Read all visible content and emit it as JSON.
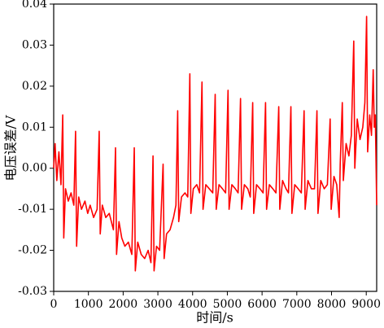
{
  "chart_data": {
    "type": "line",
    "xlabel": "时间/s",
    "ylabel": "电压误差/V",
    "color": "#ff0000",
    "xlim": [
      0,
      9300
    ],
    "ylim": [
      -0.03,
      0.04
    ],
    "xticks": [
      0,
      1000,
      2000,
      3000,
      4000,
      5000,
      6000,
      7000,
      8000,
      9000
    ],
    "yticks": [
      -0.03,
      -0.02,
      -0.01,
      {
        "value": 0,
        "label": "0.00"
      },
      0.01,
      0.02,
      0.03,
      0.04
    ],
    "x": [
      0,
      40,
      90,
      150,
      210,
      260,
      290,
      340,
      420,
      500,
      580,
      630,
      660,
      720,
      800,
      900,
      980,
      1050,
      1150,
      1250,
      1310,
      1340,
      1400,
      1500,
      1600,
      1720,
      1780,
      1810,
      1880,
      1960,
      2050,
      2150,
      2250,
      2320,
      2350,
      2420,
      2520,
      2620,
      2720,
      2800,
      2860,
      2890,
      2960,
      3050,
      3150,
      3180,
      3250,
      3350,
      3450,
      3520,
      3570,
      3600,
      3680,
      3780,
      3860,
      3920,
      3950,
      4020,
      4120,
      4200,
      4270,
      4300,
      4380,
      4480,
      4580,
      4650,
      4680,
      4760,
      4860,
      4950,
      5020,
      5050,
      5130,
      5230,
      5310,
      5380,
      5410,
      5490,
      5590,
      5660,
      5730,
      5760,
      5840,
      5940,
      6030,
      6100,
      6130,
      6210,
      6310,
      6400,
      6480,
      6510,
      6590,
      6690,
      6760,
      6830,
      6860,
      6940,
      7040,
      7130,
      7210,
      7240,
      7320,
      7420,
      7510,
      7580,
      7610,
      7690,
      7790,
      7880,
      7960,
      7990,
      8070,
      8150,
      8220,
      8250,
      8310,
      8340,
      8420,
      8500,
      8570,
      8640,
      8670,
      8740,
      8820,
      8900,
      8960,
      9010,
      9040,
      9100,
      9150,
      9200,
      9230,
      9260,
      9300
    ],
    "values": [
      0.0,
      0.006,
      -0.003,
      0.004,
      -0.004,
      0.013,
      -0.017,
      -0.005,
      -0.008,
      -0.006,
      -0.009,
      0.009,
      -0.019,
      -0.007,
      -0.01,
      -0.008,
      -0.011,
      -0.009,
      -0.012,
      -0.01,
      0.009,
      -0.016,
      -0.009,
      -0.012,
      -0.011,
      -0.015,
      0.005,
      -0.021,
      -0.013,
      -0.017,
      -0.019,
      -0.018,
      -0.021,
      0.005,
      -0.025,
      -0.018,
      -0.021,
      -0.022,
      -0.02,
      -0.023,
      0.003,
      -0.025,
      -0.019,
      -0.02,
      0.001,
      -0.022,
      -0.016,
      -0.015,
      -0.012,
      -0.009,
      0.014,
      -0.013,
      -0.007,
      -0.006,
      -0.007,
      0.023,
      -0.011,
      -0.005,
      -0.004,
      -0.006,
      0.021,
      -0.01,
      -0.004,
      -0.005,
      -0.006,
      0.018,
      -0.01,
      -0.004,
      -0.005,
      -0.006,
      0.019,
      -0.01,
      -0.004,
      -0.005,
      -0.006,
      0.017,
      -0.01,
      -0.004,
      -0.005,
      -0.007,
      0.016,
      -0.011,
      -0.004,
      -0.005,
      -0.006,
      0.016,
      -0.01,
      -0.004,
      -0.005,
      -0.006,
      0.015,
      -0.01,
      -0.003,
      -0.005,
      -0.006,
      0.015,
      -0.011,
      -0.004,
      -0.005,
      -0.006,
      0.014,
      -0.01,
      -0.003,
      -0.005,
      -0.005,
      0.014,
      -0.011,
      -0.003,
      -0.005,
      -0.004,
      0.012,
      -0.01,
      -0.002,
      -0.004,
      -0.012,
      0.001,
      0.016,
      -0.003,
      0.006,
      0.003,
      0.008,
      0.031,
      0.0,
      0.012,
      0.007,
      0.01,
      0.016,
      0.037,
      0.004,
      0.013,
      0.008,
      0.024,
      0.01,
      0.013,
      -0.009
    ]
  }
}
